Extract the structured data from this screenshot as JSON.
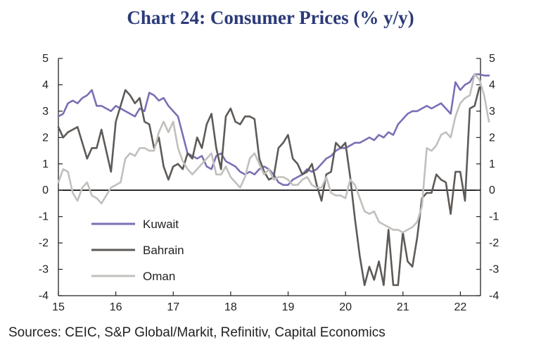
{
  "chart_data": {
    "type": "line",
    "title": "Chart 24: Consumer Prices (% y/y)",
    "source": "Sources: CEIC, S&P Global/Markit, Refinitiv, Capital Economics",
    "xlabel": "",
    "ylabel": "",
    "xlim": [
      15,
      22.35
    ],
    "ylim": [
      -4,
      5
    ],
    "x_ticks": [
      "15",
      "16",
      "17",
      "18",
      "19",
      "20",
      "21",
      "22"
    ],
    "y_ticks_left": [
      "5",
      "4",
      "3",
      "2",
      "1",
      "0",
      "-1",
      "-2",
      "-3",
      "-4"
    ],
    "y_ticks_right": [
      "5",
      "4",
      "3",
      "2",
      "1",
      "0",
      "-1",
      "-2",
      "-3",
      "-4"
    ],
    "legend_placement": "bottom-left",
    "colors": {
      "Kuwait": "#7b6fb5",
      "Bahrain": "#5e5a57",
      "Oman": "#c2bfbc",
      "axis": "#222222"
    },
    "series": [
      {
        "name": "Kuwait",
        "start": 15.0,
        "step": 0.0833,
        "values": [
          2.8,
          2.9,
          3.3,
          3.4,
          3.3,
          3.5,
          3.6,
          3.8,
          3.2,
          3.2,
          3.1,
          3.0,
          3.2,
          3.1,
          3.0,
          2.9,
          2.8,
          3.1,
          3.0,
          3.7,
          3.6,
          3.4,
          3.5,
          3.2,
          3.0,
          2.8,
          2.1,
          1.4,
          1.3,
          1.2,
          1.3,
          0.9,
          0.8,
          1.3,
          1.4,
          1.1,
          1.0,
          0.9,
          0.7,
          0.6,
          0.7,
          0.6,
          0.8,
          0.9,
          0.8,
          0.6,
          0.3,
          0.2,
          0.2,
          0.4,
          0.5,
          0.6,
          0.8,
          0.7,
          0.8,
          1.0,
          1.2,
          1.3,
          1.5,
          1.6,
          1.6,
          1.7,
          1.8,
          1.8,
          1.9,
          2.0,
          1.9,
          2.1,
          2.0,
          2.2,
          2.1,
          2.5,
          2.7,
          2.9,
          3.0,
          3.0,
          3.1,
          3.2,
          3.1,
          3.2,
          3.3,
          3.1,
          2.9,
          4.1,
          3.8,
          4.0,
          4.1,
          4.4,
          4.4,
          4.35,
          4.35
        ]
      },
      {
        "name": "Bahrain",
        "start": 15.0,
        "step": 0.0833,
        "values": [
          2.4,
          2.0,
          2.2,
          2.3,
          2.4,
          1.8,
          1.2,
          1.6,
          1.6,
          2.3,
          1.5,
          0.7,
          2.6,
          3.2,
          3.8,
          3.6,
          3.3,
          3.5,
          2.6,
          2.5,
          1.6,
          2.0,
          0.9,
          0.4,
          0.9,
          1.0,
          0.8,
          1.4,
          1.2,
          2.0,
          1.6,
          2.5,
          2.9,
          1.6,
          0.8,
          2.8,
          3.1,
          2.6,
          2.5,
          2.8,
          2.8,
          2.7,
          1.2,
          0.7,
          0.4,
          0.5,
          1.6,
          1.8,
          2.1,
          1.2,
          1.0,
          0.6,
          0.7,
          1.0,
          0.2,
          -0.4,
          0.6,
          0.7,
          1.8,
          1.6,
          1.8,
          0.5,
          -1.1,
          -2.5,
          -3.6,
          -2.9,
          -3.4,
          -2.7,
          -3.6,
          -1.5,
          -3.6,
          -3.6,
          -1.6,
          -2.7,
          -2.9,
          -1.8,
          -0.3,
          -0.1,
          -0.1,
          0.6,
          0.4,
          0.3,
          -0.9,
          0.7,
          0.7,
          -0.4,
          3.1,
          3.2,
          3.9
        ]
      },
      {
        "name": "Oman",
        "start": 15.0,
        "step": 0.0833,
        "values": [
          0.3,
          0.8,
          0.7,
          -0.1,
          -0.4,
          0.1,
          0.3,
          -0.2,
          -0.3,
          -0.5,
          -0.2,
          0.1,
          0.2,
          0.3,
          1.2,
          1.4,
          1.3,
          1.6,
          1.6,
          1.5,
          1.5,
          2.2,
          2.6,
          2.2,
          2.6,
          1.6,
          1.1,
          0.8,
          0.6,
          0.8,
          1.0,
          1.2,
          1.4,
          0.6,
          0.6,
          0.9,
          0.5,
          0.3,
          0.1,
          0.5,
          1.2,
          1.4,
          1.0,
          0.6,
          0.8,
          0.4,
          0.5,
          0.5,
          0.4,
          0.2,
          0.2,
          0.4,
          0.5,
          0.2,
          0.1,
          0.1,
          0.5,
          -0.1,
          -0.2,
          -0.2,
          -0.3,
          0.4,
          0.2,
          -0.3,
          -0.8,
          -0.9,
          -0.8,
          -1.2,
          -1.3,
          -1.4,
          -1.5,
          -1.5,
          -1.6,
          -1.5,
          -1.4,
          -1.2,
          -0.6,
          1.6,
          1.5,
          1.7,
          2.1,
          2.2,
          2.0,
          2.8,
          3.3,
          3.5,
          3.6,
          4.4,
          4.2,
          3.6,
          2.6
        ]
      }
    ]
  }
}
